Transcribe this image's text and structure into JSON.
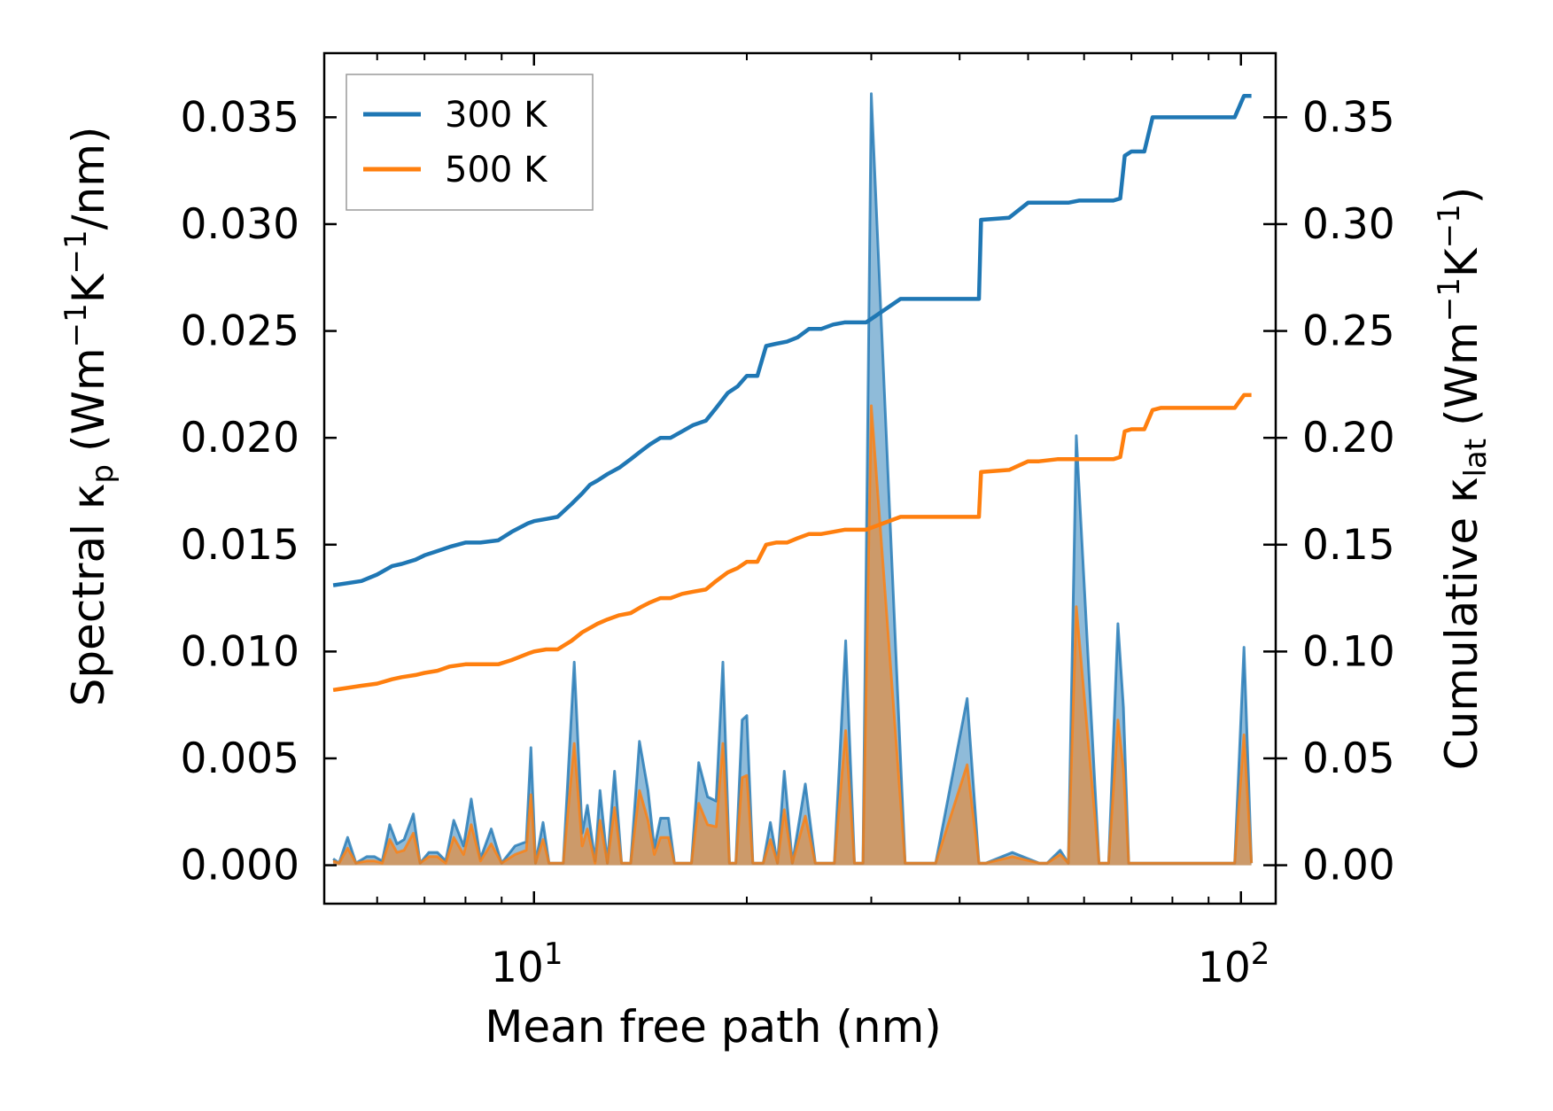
{
  "chart_data": {
    "type": "line",
    "title": "",
    "xlabel": "Mean free path (nm)",
    "xscale": "log",
    "xlim": [
      5.05,
      112
    ],
    "x_ticks": [
      {
        "value": 10,
        "base": "10",
        "exp": "1"
      },
      {
        "value": 100,
        "base": "10",
        "exp": "2"
      }
    ],
    "y_left": {
      "label_main": "Spectral κ",
      "label_sub": "p",
      "label_unit_a": "(Wm",
      "label_exp1": "−1",
      "label_unit_b": "K",
      "label_exp2": "−1",
      "label_unit_c": "/nm)",
      "lim": [
        -0.0018,
        0.038
      ],
      "ticks": [
        0.0,
        0.005,
        0.01,
        0.015,
        0.02,
        0.025,
        0.03,
        0.035
      ],
      "tick_labels": [
        "0.000",
        "0.005",
        "0.010",
        "0.015",
        "0.020",
        "0.025",
        "0.030",
        "0.035"
      ]
    },
    "y_right": {
      "label_main": "Cumulative κ",
      "label_sub": "lat",
      "label_unit_a": "(Wm",
      "label_exp1": "−1",
      "label_unit_b": "K",
      "label_exp2": "−1",
      "label_unit_c": ")",
      "lim": [
        -0.018,
        0.38
      ],
      "ticks": [
        0.0,
        0.05,
        0.1,
        0.15,
        0.2,
        0.25,
        0.3,
        0.35
      ],
      "tick_labels": [
        "0.00",
        "0.05",
        "0.10",
        "0.15",
        "0.20",
        "0.25",
        "0.30",
        "0.35"
      ]
    },
    "legend": {
      "position": "top-left",
      "entries": [
        {
          "label": "300 K",
          "color": "#1f77b4"
        },
        {
          "label": "500 K",
          "color": "#ff7f0e"
        }
      ]
    },
    "series": [
      {
        "name": "300 K",
        "color": "#1f77b4",
        "spectral": {
          "x": [
            5.2,
            5.3,
            5.45,
            5.6,
            5.8,
            5.95,
            6.1,
            6.25,
            6.4,
            6.55,
            6.75,
            6.9,
            7.1,
            7.3,
            7.5,
            7.7,
            7.95,
            8.15,
            8.4,
            8.7,
            9.0,
            9.4,
            9.75,
            9.9,
            10.05,
            10.3,
            10.5,
            10.7,
            11.0,
            11.4,
            11.7,
            11.9,
            12.2,
            12.4,
            12.7,
            13.0,
            13.3,
            13.7,
            14.1,
            14.5,
            14.8,
            15.1,
            15.5,
            15.8,
            16.2,
            16.7,
            17.1,
            17.6,
            18.1,
            18.5,
            18.9,
            19.3,
            19.7,
            20.0,
            20.4,
            21.1,
            21.6,
            22.1,
            22.6,
            23.2,
            24.2,
            25.0,
            25.9,
            26.6,
            27.6,
            28.4,
            29.2,
            30.0,
            33.5,
            35.8,
            37.0,
            41.0,
            42.6,
            43.6,
            47.5,
            51.8,
            53.2,
            55.5,
            57.0,
            58.5,
            63.0,
            65.0,
            67.0,
            68.2,
            69.4,
            70.5,
            73.0,
            75.0,
            76.5,
            78.0,
            98.0,
            101.0,
            103.5
          ],
          "y": [
            0.0003,
            0.0001,
            0.0013,
            0.0001,
            0.0004,
            0.0004,
            0.0002,
            0.0019,
            0.001,
            0.0012,
            0.0024,
            0.0001,
            0.0006,
            0.0006,
            0.0002,
            0.0021,
            0.0009,
            0.0031,
            0.0003,
            0.0017,
            0.0001,
            0.0009,
            0.0011,
            0.0055,
            0.0001,
            0.002,
            0.0001,
            0.0001,
            0.0001,
            0.0095,
            0.0015,
            0.0028,
            0.0002,
            0.0035,
            0.0001,
            0.0044,
            0.0001,
            0.0001,
            0.0058,
            0.0035,
            0.0008,
            0.0022,
            0.0022,
            0.0001,
            0.0001,
            0.0001,
            0.0048,
            0.0032,
            0.003,
            0.0095,
            0.0001,
            0.0001,
            0.0068,
            0.007,
            0.0001,
            0.0001,
            0.002,
            0.0001,
            0.0044,
            0.0001,
            0.0038,
            0.0001,
            0.0001,
            0.0001,
            0.0105,
            0.0001,
            0.0001,
            0.0361,
            0.0001,
            0.0001,
            0.0001,
            0.0078,
            0.0001,
            0.0001,
            0.0006,
            0.0001,
            0.0001,
            0.0007,
            0.0001,
            0.0201,
            0.0001,
            0.0001,
            0.0113,
            0.0074,
            0.0001,
            0.0001,
            0.0001,
            0.0001,
            0.0001,
            0.0001,
            0.0001,
            0.0102,
            0.0001
          ]
        },
        "cumulative": {
          "x": [
            5.2,
            5.45,
            5.7,
            6.0,
            6.3,
            6.5,
            6.8,
            7.0,
            7.3,
            7.6,
            8.0,
            8.4,
            8.9,
            9.3,
            9.8,
            10.0,
            10.4,
            10.8,
            11.3,
            11.7,
            12.0,
            12.3,
            12.7,
            13.2,
            13.7,
            14.2,
            14.6,
            15.1,
            15.6,
            16.2,
            16.8,
            17.5,
            18.1,
            18.8,
            19.4,
            20.0,
            20.7,
            21.3,
            22.0,
            22.8,
            23.6,
            24.5,
            25.5,
            26.5,
            27.5,
            28.5,
            29.5,
            33.0,
            35.5,
            37.0,
            41.0,
            42.6,
            42.9,
            47.0,
            50.0,
            51.8,
            55.0,
            57.0,
            59.0,
            63.0,
            66.0,
            67.5,
            68.5,
            70.0,
            73.0,
            75.0,
            77.0,
            80.0,
            85.0,
            92.0,
            98.0,
            101.0,
            103.5
          ],
          "y": [
            0.131,
            0.132,
            0.133,
            0.136,
            0.14,
            0.141,
            0.143,
            0.145,
            0.147,
            0.149,
            0.151,
            0.151,
            0.152,
            0.156,
            0.16,
            0.161,
            0.162,
            0.163,
            0.169,
            0.174,
            0.178,
            0.18,
            0.183,
            0.186,
            0.19,
            0.194,
            0.197,
            0.2,
            0.2,
            0.203,
            0.206,
            0.208,
            0.214,
            0.221,
            0.224,
            0.229,
            0.229,
            0.243,
            0.244,
            0.245,
            0.247,
            0.251,
            0.251,
            0.253,
            0.254,
            0.254,
            0.254,
            0.265,
            0.265,
            0.265,
            0.265,
            0.265,
            0.302,
            0.303,
            0.31,
            0.31,
            0.31,
            0.31,
            0.311,
            0.311,
            0.311,
            0.312,
            0.332,
            0.334,
            0.334,
            0.35,
            0.35,
            0.35,
            0.35,
            0.35,
            0.35,
            0.36,
            0.36
          ]
        }
      },
      {
        "name": "500 K",
        "color": "#ff7f0e",
        "spectral": {
          "x": [
            5.2,
            5.3,
            5.45,
            5.6,
            5.8,
            5.95,
            6.1,
            6.25,
            6.4,
            6.55,
            6.75,
            6.9,
            7.1,
            7.3,
            7.5,
            7.7,
            7.95,
            8.15,
            8.4,
            8.7,
            9.0,
            9.4,
            9.75,
            9.9,
            10.05,
            10.3,
            10.5,
            10.7,
            11.0,
            11.4,
            11.7,
            11.9,
            12.2,
            12.4,
            12.7,
            13.0,
            13.3,
            13.7,
            14.1,
            14.5,
            14.8,
            15.1,
            15.5,
            15.8,
            16.2,
            16.7,
            17.1,
            17.6,
            18.1,
            18.5,
            18.9,
            19.3,
            19.7,
            20.0,
            20.4,
            21.1,
            21.6,
            22.1,
            22.6,
            23.2,
            24.2,
            25.0,
            25.9,
            26.6,
            27.6,
            28.4,
            29.2,
            30.0,
            33.5,
            35.8,
            37.0,
            41.0,
            42.6,
            43.6,
            47.5,
            51.8,
            53.2,
            55.5,
            57.0,
            58.5,
            63.0,
            65.0,
            67.0,
            68.2,
            69.4,
            70.5,
            73.0,
            75.0,
            76.5,
            78.0,
            98.0,
            101.0,
            103.5
          ],
          "y": [
            0.0002,
            0.0001,
            0.0008,
            0.0001,
            0.0002,
            0.0002,
            0.0001,
            0.0012,
            0.0006,
            0.0007,
            0.0015,
            0.0001,
            0.0004,
            0.0004,
            0.0001,
            0.0013,
            0.0005,
            0.0019,
            0.0002,
            0.001,
            0.0001,
            0.0005,
            0.0007,
            0.0033,
            0.0001,
            0.0012,
            0.0001,
            0.0001,
            0.0001,
            0.0057,
            0.0009,
            0.0017,
            0.0001,
            0.0021,
            0.0001,
            0.0027,
            0.0001,
            0.0001,
            0.0035,
            0.0021,
            0.0005,
            0.0013,
            0.0013,
            0.0001,
            0.0001,
            0.0001,
            0.0029,
            0.0019,
            0.0018,
            0.0057,
            0.0001,
            0.0001,
            0.0041,
            0.0042,
            0.0001,
            0.0001,
            0.0012,
            0.0001,
            0.0026,
            0.0001,
            0.0023,
            0.0001,
            0.0001,
            0.0001,
            0.0063,
            0.0001,
            0.0001,
            0.0215,
            0.0001,
            0.0001,
            0.0001,
            0.0047,
            0.0001,
            0.0001,
            0.0004,
            0.0001,
            0.0001,
            0.0005,
            0.0001,
            0.0121,
            0.0001,
            0.0001,
            0.0068,
            0.0045,
            0.0001,
            0.0001,
            0.0001,
            0.0001,
            0.0001,
            0.0001,
            0.0001,
            0.0061,
            0.0001
          ]
        },
        "cumulative": {
          "x": [
            5.2,
            5.45,
            5.7,
            6.0,
            6.3,
            6.5,
            6.8,
            7.0,
            7.3,
            7.6,
            8.0,
            8.4,
            8.9,
            9.3,
            9.8,
            10.0,
            10.4,
            10.8,
            11.3,
            11.7,
            12.0,
            12.3,
            12.7,
            13.2,
            13.7,
            14.2,
            14.6,
            15.1,
            15.6,
            16.2,
            16.8,
            17.5,
            18.1,
            18.8,
            19.4,
            20.0,
            20.7,
            21.3,
            22.0,
            22.8,
            23.6,
            24.5,
            25.5,
            26.5,
            27.5,
            28.5,
            29.5,
            33.0,
            35.5,
            37.0,
            41.0,
            42.6,
            42.9,
            47.0,
            50.0,
            51.8,
            55.0,
            57.0,
            59.0,
            63.0,
            66.0,
            67.5,
            68.5,
            70.0,
            73.0,
            75.0,
            77.0,
            80.0,
            85.0,
            92.0,
            98.0,
            101.0,
            103.5
          ],
          "y": [
            0.082,
            0.083,
            0.084,
            0.085,
            0.087,
            0.088,
            0.089,
            0.09,
            0.091,
            0.093,
            0.094,
            0.094,
            0.094,
            0.096,
            0.099,
            0.1,
            0.101,
            0.101,
            0.105,
            0.109,
            0.111,
            0.113,
            0.115,
            0.117,
            0.118,
            0.121,
            0.123,
            0.125,
            0.125,
            0.127,
            0.128,
            0.129,
            0.133,
            0.137,
            0.139,
            0.142,
            0.142,
            0.15,
            0.151,
            0.151,
            0.153,
            0.155,
            0.155,
            0.156,
            0.157,
            0.157,
            0.157,
            0.163,
            0.163,
            0.163,
            0.163,
            0.163,
            0.184,
            0.185,
            0.189,
            0.189,
            0.19,
            0.19,
            0.19,
            0.19,
            0.19,
            0.191,
            0.203,
            0.204,
            0.204,
            0.213,
            0.214,
            0.214,
            0.214,
            0.214,
            0.214,
            0.22,
            0.22
          ]
        }
      }
    ]
  }
}
